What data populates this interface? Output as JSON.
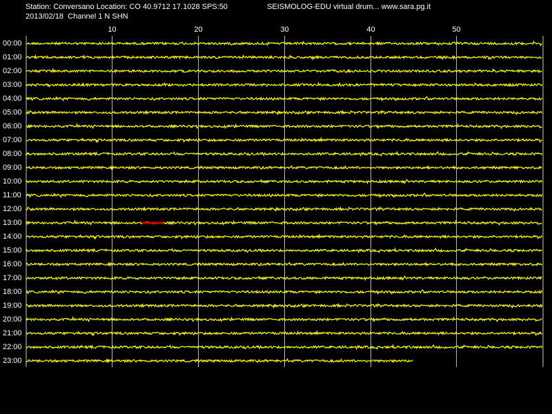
{
  "header": {
    "station_line": "Station: Conversano Location: CO 40.9712 17.1028 SPS:50",
    "app_line": "SEISMOLOG-EDU virtual drum... www.sara.pg.it",
    "date_line": "2013/02/18  Channel 1 N SHN"
  },
  "minute_axis": {
    "range": [
      0,
      60
    ],
    "ticks": [
      10,
      20,
      30,
      40,
      50
    ]
  },
  "rows": [
    "00:00",
    "01:00",
    "02:00",
    "03:00",
    "04:00",
    "05:00",
    "06:00",
    "07:00",
    "08:00",
    "09:00",
    "10:00",
    "11:00",
    "12:00",
    "13:00",
    "14:00",
    "15:00",
    "16:00",
    "17:00",
    "18:00",
    "19:00",
    "20:00",
    "21:00",
    "22:00",
    "23:00"
  ],
  "last_row_end_minute": 45,
  "event": {
    "row": 13,
    "start_minute": 13.5,
    "end_minute": 16
  }
}
